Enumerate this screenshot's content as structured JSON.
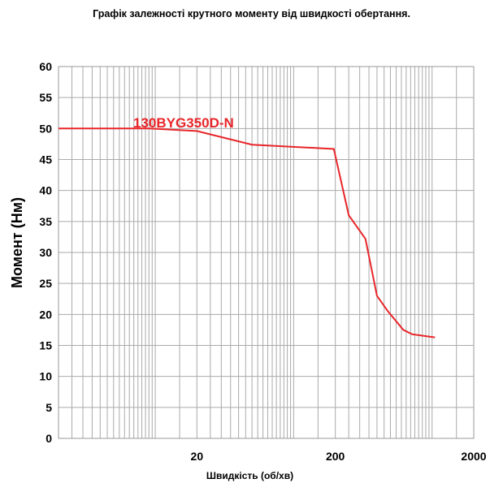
{
  "chart_data": {
    "type": "line",
    "title": "Графік залежності крутного моменту від швидкості обертання.",
    "xlabel": "Швидкість (об/хв)",
    "ylabel": "Момент (Нм)",
    "x_scale": "log",
    "xlim": [
      2,
      2000
    ],
    "ylim": [
      0,
      60
    ],
    "x_ticks": [
      "20",
      "200",
      "2000"
    ],
    "y_ticks": [
      "0",
      "5",
      "10",
      "15",
      "20",
      "25",
      "30",
      "35",
      "40",
      "45",
      "50",
      "55",
      "60"
    ],
    "grid": true,
    "series": [
      {
        "name": "130BYG350D-N",
        "color": "#e8262a",
        "x": [
          2,
          9,
          20,
          50,
          195,
          250,
          330,
          400,
          480,
          620,
          720,
          1050
        ],
        "y": [
          50,
          50,
          49.6,
          47.4,
          46.7,
          36.0,
          32.2,
          23.0,
          20.5,
          17.5,
          16.8,
          16.3
        ]
      }
    ]
  }
}
